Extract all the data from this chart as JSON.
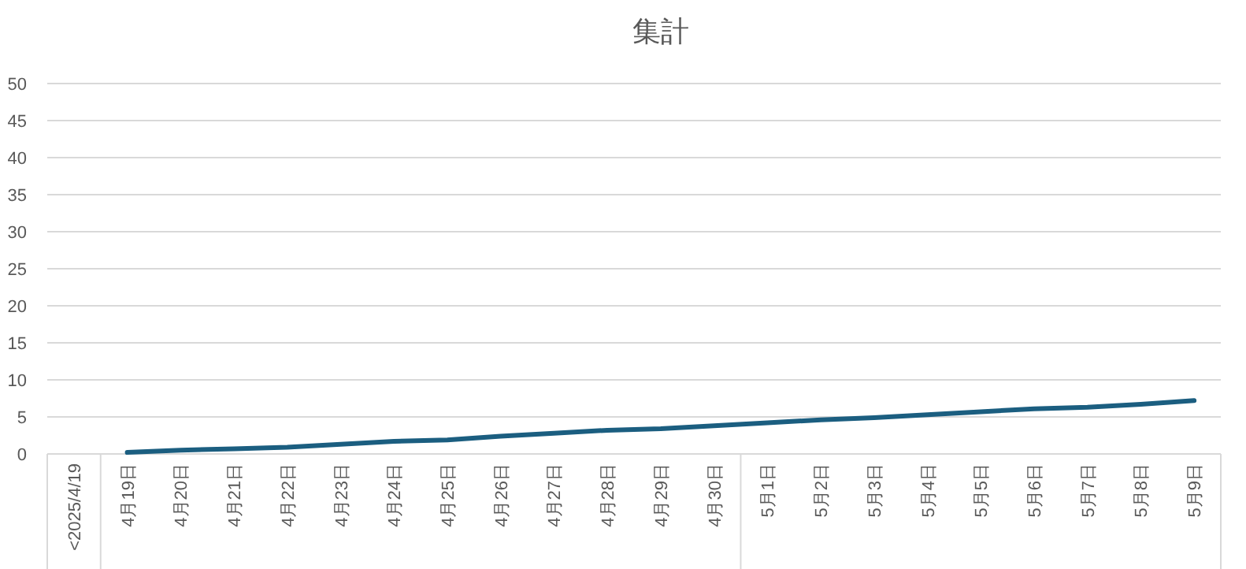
{
  "chart_data": {
    "type": "line",
    "title": "集計",
    "categories": [
      "<2025/4/19",
      "4月19日",
      "4月20日",
      "4月21日",
      "4月22日",
      "4月23日",
      "4月24日",
      "4月25日",
      "4月26日",
      "4月27日",
      "4月28日",
      "4月29日",
      "4月30日",
      "5月1日",
      "5月2日",
      "5月3日",
      "5月4日",
      "5月5日",
      "5月6日",
      "5月7日",
      "5月8日",
      "5月9日"
    ],
    "series": [
      {
        "color": "#1b5e80",
        "values": [
          null,
          0.2,
          0.5,
          0.7,
          0.9,
          1.3,
          1.7,
          1.9,
          2.4,
          2.8,
          3.2,
          3.4,
          3.8,
          4.2,
          4.6,
          4.9,
          5.3,
          5.7,
          6.1,
          6.3,
          6.7,
          7.2
        ]
      }
    ],
    "ylim": [
      0,
      50
    ],
    "yticks": [
      0,
      5,
      10,
      15,
      20,
      25,
      30,
      35,
      40,
      45,
      50
    ],
    "grid": "y",
    "marker": "none",
    "line_style": "solid"
  }
}
